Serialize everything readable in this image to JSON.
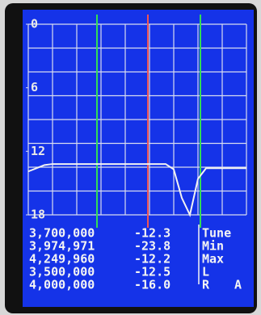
{
  "chart_data": {
    "type": "line",
    "categories": [
      null,
      null,
      null,
      null,
      null,
      null,
      null,
      null,
      null,
      null,
      null,
      null,
      null,
      null,
      null,
      null,
      null,
      null,
      null,
      null,
      null,
      null,
      null,
      null,
      null,
      null,
      null,
      null
    ],
    "series": [
      {
        "color": "#f2f2f2",
        "values": [
          13.9,
          13.6,
          13.3,
          13.2,
          13.2,
          13.2,
          13.2,
          13.2,
          13.2,
          13.2,
          13.2,
          13.2,
          13.2,
          13.2,
          13.2,
          13.2,
          13.2,
          13.2,
          13.7,
          16.4,
          18,
          14.6,
          13.6,
          13.6,
          13.6,
          13.6,
          13.6,
          13.6
        ]
      }
    ],
    "ylim": [
      0,
      18
    ],
    "yticks": [
      0,
      6,
      12,
      18
    ],
    "y_inverted": true,
    "grid": true
  },
  "readout": {
    "rows": [
      [
        "3,700,000",
        "-12.3",
        "Tune"
      ],
      [
        "3,974,971",
        "-23.8",
        "Min"
      ],
      [
        "4,249,960",
        "-12.2",
        "Max"
      ],
      [
        "3,500,000",
        "-12.5",
        "L"
      ],
      [
        "4,000,000",
        "-16.0",
        "R"
      ]
    ],
    "corner": "A"
  }
}
